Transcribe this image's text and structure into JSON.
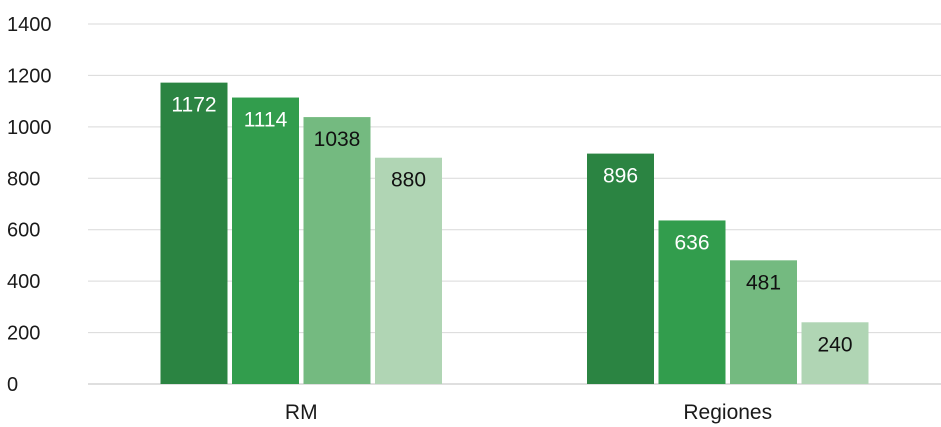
{
  "chart_data": {
    "type": "bar",
    "categories": [
      "RM",
      "Regiones"
    ],
    "series": [
      {
        "values": [
          1172,
          896
        ],
        "color": "#2b8442",
        "label_color": "#ffffff"
      },
      {
        "values": [
          1114,
          636
        ],
        "color": "#329d4d",
        "label_color": "#ffffff"
      },
      {
        "values": [
          1038,
          481
        ],
        "color": "#74ba80",
        "label_color": "#111111"
      },
      {
        "values": [
          880,
          240
        ],
        "color": "#b0d5b4",
        "label_color": "#111111"
      }
    ],
    "y_ticks": [
      "0",
      "200",
      "400",
      "600",
      "800",
      "1000",
      "1200",
      "1400"
    ],
    "ylim": [
      0,
      1400
    ],
    "grid": true,
    "legend": "none",
    "title": "",
    "xlabel": "",
    "ylabel": ""
  }
}
